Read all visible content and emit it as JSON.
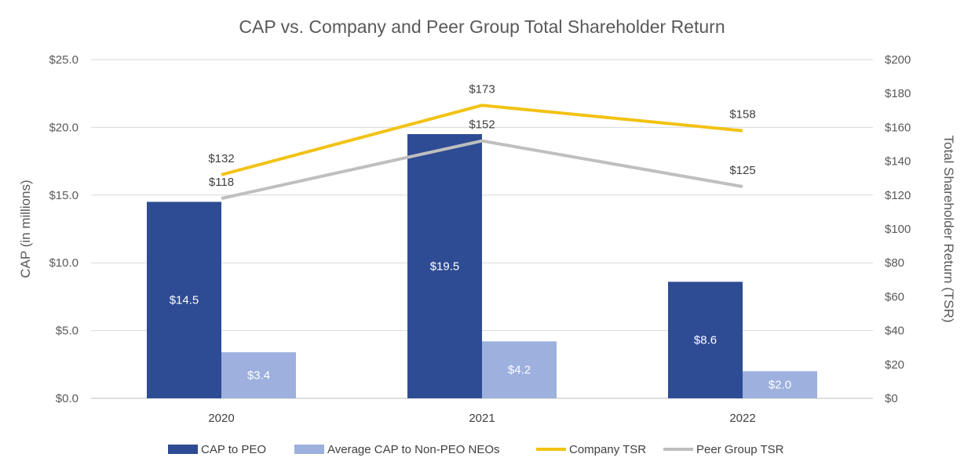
{
  "chart_data": {
    "type": "bar",
    "title": "CAP vs. Company and Peer Group Total Shareholder Return",
    "categories": [
      "2020",
      "2021",
      "2022"
    ],
    "ylabel": "CAP (in millions)",
    "y2label": "Total Shareholder Return (TSR)",
    "ylim": [
      0,
      25
    ],
    "y2lim": [
      0,
      200
    ],
    "yticks": [
      "$0.0",
      "$5.0",
      "$10.0",
      "$15.0",
      "$20.0",
      "$25.0"
    ],
    "y2ticks": [
      "$0",
      "$20",
      "$40",
      "$60",
      "$80",
      "$100",
      "$120",
      "$140",
      "$160",
      "$180",
      "$200"
    ],
    "grid": true,
    "legend_position": "bottom",
    "bar_series": [
      {
        "name": "CAP to PEO",
        "values": [
          14.5,
          19.5,
          8.6
        ],
        "labels": [
          "$14.5",
          "$19.5",
          "$8.6"
        ],
        "color": "#2E4C93"
      },
      {
        "name": "Average CAP to Non-PEO NEOs",
        "values": [
          3.4,
          4.2,
          2.0
        ],
        "labels": [
          "$3.4",
          "$4.2",
          "$2.0"
        ],
        "color": "#9DB0DE"
      }
    ],
    "line_series": [
      {
        "name": "Company TSR",
        "values": [
          132,
          173,
          158
        ],
        "labels": [
          "$132",
          "$173",
          "$158"
        ],
        "color": "#F2C214"
      },
      {
        "name": "Peer Group TSR",
        "values": [
          118,
          152,
          125
        ],
        "labels": [
          "$118",
          "$152",
          "$125"
        ],
        "color": "#BFBFBF"
      }
    ]
  }
}
